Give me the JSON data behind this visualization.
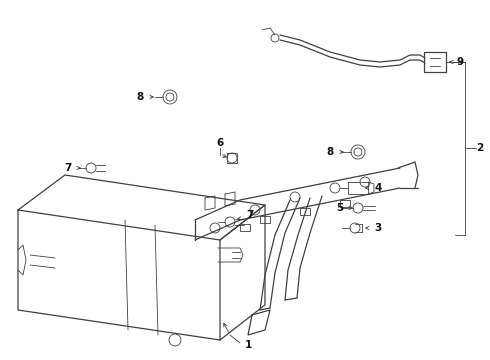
{
  "bg_color": "#ffffff",
  "line_color": "#404040",
  "label_color": "#111111",
  "fig_width": 4.9,
  "fig_height": 3.6,
  "dpi": 100
}
